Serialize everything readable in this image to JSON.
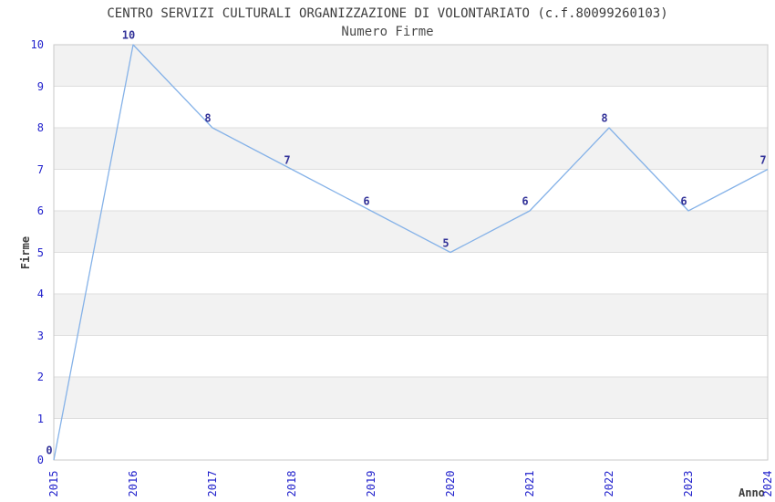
{
  "title": "CENTRO SERVIZI CULTURALI ORGANIZZAZIONE DI VOLONTARIATO (c.f.80099260103)",
  "subtitle": "Numero Firme",
  "chart_data": {
    "type": "line",
    "x": [
      "2015",
      "2016",
      "2017",
      "2018",
      "2019",
      "2020",
      "2021",
      "2022",
      "2023",
      "2024"
    ],
    "values": [
      0,
      10,
      8,
      7,
      6,
      5,
      6,
      8,
      6,
      7
    ],
    "point_labels": [
      "0",
      "10",
      "8",
      "7",
      "6",
      "5",
      "6",
      "8",
      "6",
      "7"
    ],
    "title": "CENTRO SERVIZI CULTURALI ORGANIZZAZIONE DI VOLONTARIATO (c.f.80099260103)",
    "subtitle": "Numero Firme",
    "xlabel": "Anno",
    "ylabel": "Firme",
    "ylim": [
      0,
      10
    ],
    "yticks": [
      0,
      1,
      2,
      3,
      4,
      5,
      6,
      7,
      8,
      9,
      10
    ],
    "grid": true,
    "legend": false,
    "colors": {
      "line": "#85b2e8",
      "tick_label": "#2222cc",
      "point_label": "#333399",
      "axis_text": "#3c3c3c",
      "band": "#f2f2f2",
      "gridline": "#dedede",
      "border": "#c9c9c9",
      "background": "#ffffff"
    }
  }
}
